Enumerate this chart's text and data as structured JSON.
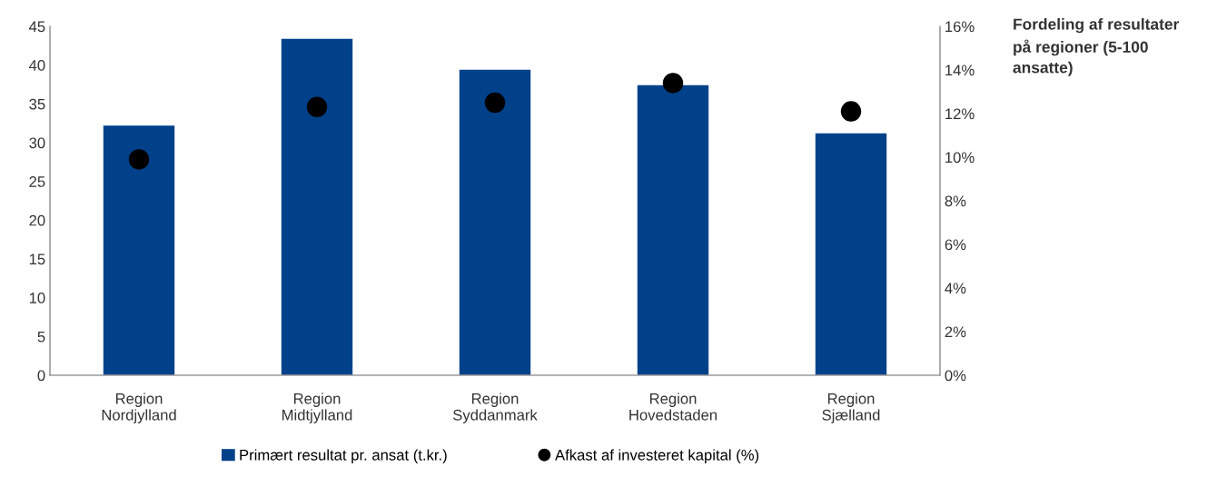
{
  "chart_data": {
    "type": "bar",
    "title": "Fordeling af resultater\npå regioner (5-100\nansatte)",
    "categories": [
      "Region\nNordjylland",
      "Region\nMidtjylland",
      "Region\nSyddanmark",
      "Region\nHovedstaden",
      "Region\nSjælland"
    ],
    "series": [
      {
        "name": "Primært resultat pr. ansat (t.kr.)",
        "color": "#00418a",
        "values": [
          32.2,
          43.4,
          39.4,
          37.4,
          31.2
        ]
      },
      {
        "name": "Afkast af investeret kapital (%)",
        "type": "scatter",
        "axis": "y2",
        "color": "#000000",
        "marker": "circle",
        "values": [
          9.9,
          12.3,
          12.5,
          13.4,
          12.1
        ]
      }
    ],
    "ylim": [
      0,
      45
    ],
    "yticks": [
      0,
      5,
      10,
      15,
      20,
      25,
      30,
      35,
      40,
      45
    ],
    "y2lim": [
      0,
      16
    ],
    "y2ticks": [
      {
        "value": 0,
        "label": "0%"
      },
      {
        "value": 2,
        "label": "2%"
      },
      {
        "value": 4,
        "label": "4%"
      },
      {
        "value": 6,
        "label": "6%"
      },
      {
        "value": 8,
        "label": "8%"
      },
      {
        "value": 10,
        "label": "10%"
      },
      {
        "value": 12,
        "label": "12%"
      },
      {
        "value": 14,
        "label": "14%"
      },
      {
        "value": 16,
        "label": "16%"
      }
    ],
    "legend": "bottom",
    "grid": false
  }
}
